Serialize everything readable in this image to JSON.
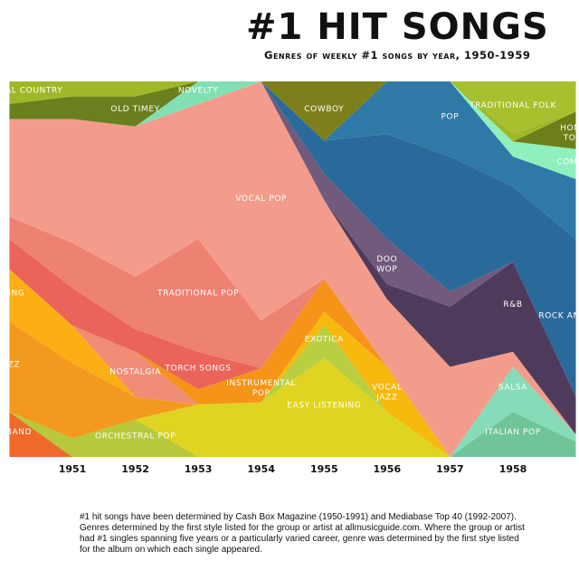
{
  "title": "#1 HIT SONGS",
  "subtitle": "Genres of weekly #1 songs by year, 1950-1959",
  "footnote": "#1 hit songs have been determined by Cash Box Magazine (1950-1991) and Mediabase Top 40 (1992-2007). Genres determined by the first style listed for the group or artist at allmusicguide.com. Where the group or artist had #1 singles spanning five years or a particularly varied career, genre was determined by the first stye listed for the album on which each single appeared.",
  "chart_data": {
    "type": "area",
    "stacking": "percent",
    "x": [
      1950,
      1951,
      1952,
      1953,
      1954,
      1955,
      1956,
      1957,
      1958,
      1959
    ],
    "x_tick_labels": [
      "1951",
      "1952",
      "1953",
      "1954",
      "1955",
      "1956",
      "1957",
      "1958"
    ],
    "ylim": [
      0,
      100
    ],
    "grid": false,
    "legend": "none",
    "series": [
      {
        "name": "BIG BAND",
        "color": "#ee6a2b",
        "values": [
          12,
          0,
          0,
          0,
          0,
          0,
          0,
          0,
          0,
          0
        ]
      },
      {
        "name": "ORCHESTRAL POP",
        "color": "#b7c93a",
        "values": [
          0,
          5,
          10,
          0,
          0,
          0,
          0,
          0,
          0,
          0
        ]
      },
      {
        "name": "EASY LISTENING",
        "color": "#dfd421",
        "values": [
          0,
          0,
          0,
          14,
          16,
          30,
          12,
          0,
          0,
          0
        ]
      },
      {
        "name": "ITALIAN POP",
        "color": "#6fc49a",
        "values": [
          0,
          0,
          0,
          0,
          0,
          0,
          0,
          0,
          12,
          4
        ]
      },
      {
        "name": "SALSA",
        "color": "#86dcb8",
        "values": [
          0,
          0,
          0,
          0,
          0,
          0,
          0,
          0,
          12,
          2
        ]
      },
      {
        "name": "JAZZ",
        "color": "#f39a1e",
        "values": [
          24,
          20,
          6,
          0,
          0,
          0,
          0,
          0,
          0,
          0
        ]
      },
      {
        "name": "EXOTICA",
        "color": "#b8cf42",
        "values": [
          0,
          0,
          0,
          0,
          0,
          10,
          0,
          0,
          0,
          0
        ]
      },
      {
        "name": "VOCAL JAZZ",
        "color": "#f7b90d",
        "values": [
          0,
          0,
          0,
          0,
          0,
          4,
          12,
          0,
          0,
          0
        ]
      },
      {
        "name": "SWING",
        "color": "#fbaf14",
        "values": [
          14,
          10,
          0,
          0,
          0,
          0,
          0,
          0,
          0,
          0
        ]
      },
      {
        "name": "NOSTALGIA",
        "color": "#ef8d77",
        "values": [
          0,
          0,
          12,
          0,
          0,
          0,
          0,
          0,
          0,
          0
        ]
      },
      {
        "name": "INSTRUMENTAL POP",
        "color": "#f59418",
        "values": [
          0,
          0,
          0,
          4,
          10,
          10,
          0,
          0,
          0,
          0
        ]
      },
      {
        "name": "TORCH SONGS",
        "color": "#ea6459",
        "values": [
          8,
          10,
          6,
          10,
          0,
          0,
          0,
          0,
          0,
          0
        ]
      },
      {
        "name": "TRADITIONAL POP",
        "color": "#ee8272",
        "values": [
          6,
          12,
          14,
          30,
          14,
          0,
          0,
          0,
          0,
          0
        ]
      },
      {
        "name": "VOCAL POP",
        "color": "#f39c8c",
        "values": [
          26,
          33,
          40,
          36,
          70,
          24,
          18,
          24,
          4,
          0
        ]
      },
      {
        "name": "R&B",
        "color": "#4e3b5b",
        "values": [
          0,
          0,
          0,
          0,
          0,
          0,
          4,
          16,
          24,
          10
        ]
      },
      {
        "name": "DOO WOP",
        "color": "#715a7b",
        "values": [
          0,
          0,
          0,
          0,
          0,
          8,
          12,
          4,
          0,
          0
        ]
      },
      {
        "name": "ROCK AND ROLL",
        "color": "#2a6a9b",
        "values": [
          0,
          0,
          0,
          0,
          0,
          10,
          28,
          36,
          20,
          42
        ]
      },
      {
        "name": "POP",
        "color": "#2f79a7",
        "values": [
          0,
          0,
          0,
          0,
          0,
          0,
          14,
          20,
          8,
          16
        ]
      },
      {
        "name": "COMEDY",
        "color": "#8ff0bd",
        "values": [
          0,
          0,
          0,
          0,
          0,
          0,
          0,
          0,
          4,
          8
        ]
      },
      {
        "name": "HONKY TONK",
        "color": "#6d7f19",
        "values": [
          0,
          0,
          0,
          0,
          0,
          0,
          0,
          0,
          0,
          10
        ]
      },
      {
        "name": "NOVELTY",
        "color": "#81e0b3",
        "values": [
          0,
          0,
          0,
          6,
          0,
          0,
          0,
          0,
          0,
          0
        ]
      },
      {
        "name": "COWBOY",
        "color": "#7d7f1b",
        "values": [
          0,
          0,
          0,
          0,
          0,
          18,
          0,
          0,
          0,
          0
        ]
      },
      {
        "name": "OLD TIMEY",
        "color": "#6a801e",
        "values": [
          4,
          6,
          8,
          0,
          0,
          0,
          0,
          0,
          0,
          0
        ]
      },
      {
        "name": "TRADITIONAL COUNTRY",
        "color": "#9fb828",
        "values": [
          6,
          4,
          4,
          0,
          0,
          0,
          0,
          0,
          2,
          0
        ]
      },
      {
        "name": "TRADITIONAL FOLK",
        "color": "#a6c02e",
        "values": [
          0,
          0,
          0,
          0,
          0,
          0,
          0,
          0,
          14,
          8
        ]
      }
    ],
    "labels": [
      {
        "text": "OLD TIMEY",
        "series": "OLD TIMEY"
      },
      {
        "text": "NOVELTY",
        "series": "NOVELTY"
      },
      {
        "text": "TRADITIONAL COUNTRY",
        "series": "TRADITIONAL COUNTRY"
      },
      {
        "text": "TRADITIONAL FOLK",
        "series": "TRADITIONAL FOLK"
      },
      {
        "text": "COWBOY",
        "series": "COWBOY"
      },
      {
        "text": "POP",
        "series": "POP"
      },
      {
        "text": "HONKY",
        "series": "HONKY TONK"
      },
      {
        "text": "TONK",
        "series": "HONKY TONK"
      },
      {
        "text": "VOCAL POP",
        "series": "VOCAL POP"
      },
      {
        "text": "COMEDY",
        "series": "COMEDY"
      },
      {
        "text": "ROCK AND ROLL",
        "series": "ROCK AND ROLL"
      },
      {
        "text": "DOO",
        "series": "DOO WOP"
      },
      {
        "text": "WOP",
        "series": "DOO WOP"
      },
      {
        "text": "TRADITIONAL POP",
        "series": "TRADITIONAL POP"
      },
      {
        "text": "SWING",
        "series": "SWING"
      },
      {
        "text": "INSTRUMENTAL",
        "series": "INSTRUMENTAL POP"
      },
      {
        "text": "POP",
        "series": "INSTRUMENTAL POP"
      },
      {
        "text": "R&B",
        "series": "R&B"
      },
      {
        "text": "TORCH SONGS",
        "series": "TORCH SONGS"
      },
      {
        "text": "VOCAL",
        "series": "VOCAL JAZZ"
      },
      {
        "text": "JAZZ",
        "series": "VOCAL JAZZ"
      },
      {
        "text": "JAZZ",
        "series": "JAZZ"
      },
      {
        "text": "EXOTICA",
        "series": "EXOTICA"
      },
      {
        "text": "NOSTALGIA",
        "series": "NOSTALGIA"
      },
      {
        "text": "SALSA",
        "series": "SALSA"
      },
      {
        "text": "BIG BAND",
        "series": "BIG BAND"
      },
      {
        "text": "ORCHESTRAL POP",
        "series": "ORCHESTRAL POP"
      },
      {
        "text": "EASY LISTENING",
        "series": "EASY LISTENING"
      },
      {
        "text": "ITALIAN POP",
        "series": "ITALIAN POP"
      }
    ]
  }
}
